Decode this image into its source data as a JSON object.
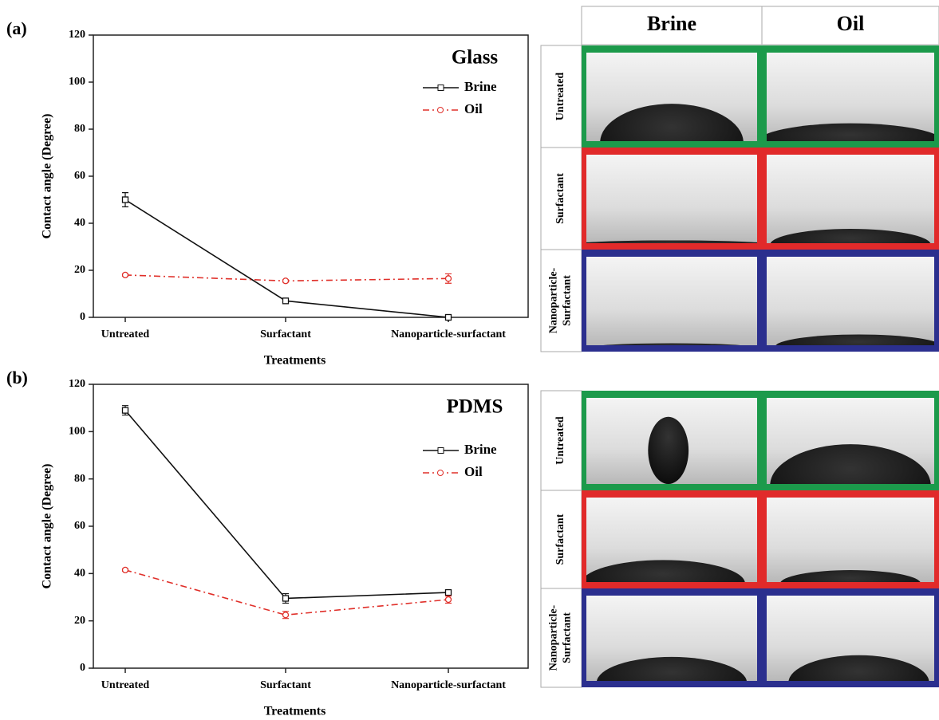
{
  "chart_data": [
    {
      "type": "line",
      "panel": "(a)",
      "annotation": "Glass",
      "xlabel": "Treatments",
      "ylabel": "Contact angle (Degree)",
      "categories": [
        "Untreated",
        "Surfactant",
        "Nanoparticle-surfactant"
      ],
      "ylim": [
        0,
        120
      ],
      "yticks": [
        0,
        20,
        40,
        60,
        80,
        100,
        120
      ],
      "series": [
        {
          "name": "Brine",
          "color": "#111111",
          "linestyle": "solid",
          "marker": "square",
          "values": [
            50,
            7,
            0
          ],
          "errors": [
            3,
            0.5,
            0.5
          ]
        },
        {
          "name": "Oil",
          "color": "#e0302a",
          "linestyle": "dashdot",
          "marker": "circle",
          "values": [
            18,
            15.5,
            16.5
          ],
          "errors": [
            0.5,
            0.5,
            2
          ]
        }
      ]
    },
    {
      "type": "line",
      "panel": "(b)",
      "annotation": "PDMS",
      "xlabel": "Treatments",
      "ylabel": "Contact angle (Degree)",
      "categories": [
        "Untreated",
        "Surfactant",
        "Nanoparticle-surfactant"
      ],
      "ylim": [
        0,
        120
      ],
      "yticks": [
        0,
        20,
        40,
        60,
        80,
        100,
        120
      ],
      "series": [
        {
          "name": "Brine",
          "color": "#111111",
          "linestyle": "solid",
          "marker": "square",
          "values": [
            109,
            29.5,
            32
          ],
          "errors": [
            2,
            2,
            1
          ]
        },
        {
          "name": "Oil",
          "color": "#e0302a",
          "linestyle": "dashdot",
          "marker": "circle",
          "values": [
            41.5,
            22.5,
            29
          ],
          "errors": [
            0.5,
            1.5,
            1.5
          ]
        }
      ]
    }
  ],
  "image_grid": {
    "columns": [
      "Brine",
      "Oil"
    ],
    "rows_a": [
      [
        "Untreated"
      ],
      [
        "Surfactant"
      ],
      [
        "Nanoparticle-",
        "Surfactant"
      ]
    ],
    "rows_b": [
      [
        "Untreated"
      ],
      [
        "Surfactant"
      ],
      [
        "Nanoparticle-",
        "Surfactant"
      ]
    ]
  }
}
